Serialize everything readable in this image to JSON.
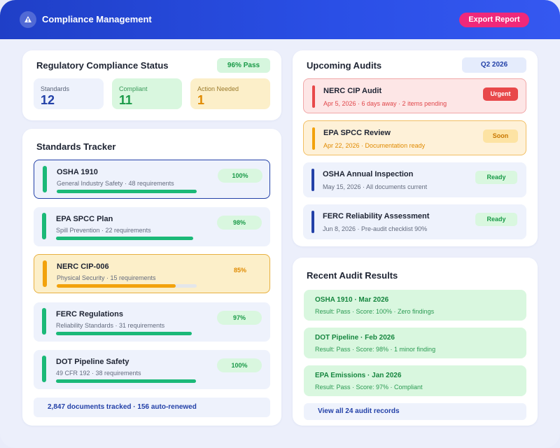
{
  "app": {
    "title": "Compliance Management",
    "export_label": "Export Report"
  },
  "status": {
    "title": "Regulatory Compliance Status",
    "pass_badge": "96% Pass",
    "stats": [
      {
        "label": "Standards",
        "value": "12",
        "bg": "#eef2fc",
        "label_color": "#5a6478",
        "value_color": "#2341a8"
      },
      {
        "label": "Compliant",
        "value": "11",
        "bg": "#d9f7df",
        "label_color": "#3a9a5a",
        "value_color": "#1a9a48"
      },
      {
        "label": "Action Needed",
        "value": "1",
        "bg": "#fcefc9",
        "label_color": "#9a7a2a",
        "value_color": "#e08a00"
      }
    ]
  },
  "tracker": {
    "title": "Standards Tracker",
    "items": [
      {
        "name": "OSHA 1910",
        "sub": "General Industry Safety · 48 requirements",
        "percent": "100%",
        "progress": 1.0,
        "state": "selected"
      },
      {
        "name": "EPA SPCC Plan",
        "sub": "Spill Prevention · 22 requirements",
        "percent": "98%",
        "progress": 0.98,
        "state": "ok"
      },
      {
        "name": "NERC CIP-006",
        "sub": "Physical Security · 15 requirements",
        "percent": "85%",
        "progress": 0.85,
        "state": "warning"
      },
      {
        "name": "FERC Regulations",
        "sub": "Reliability Standards · 31 requirements",
        "percent": "97%",
        "progress": 0.97,
        "state": "ok"
      },
      {
        "name": "DOT Pipeline Safety",
        "sub": "49 CFR 192 · 38 requirements",
        "percent": "100%",
        "progress": 1.0,
        "state": "ok"
      }
    ],
    "footer": "2,847 documents tracked · 156 auto-renewed"
  },
  "audits": {
    "title": "Upcoming Audits",
    "quarter": "Q2 2026",
    "items": [
      {
        "name": "NERC CIP Audit",
        "sub": "Apr 5, 2026 · 6 days away · 2 items pending",
        "tag": "Urgent",
        "state": "urgent"
      },
      {
        "name": "EPA SPCC Review",
        "sub": "Apr 22, 2026 · Documentation ready",
        "tag": "Soon",
        "state": "soon"
      },
      {
        "name": "OSHA Annual Inspection",
        "sub": "May 15, 2026 · All documents current",
        "tag": "Ready",
        "state": "ready"
      },
      {
        "name": "FERC Reliability Assessment",
        "sub": "Jun 8, 2026 · Pre-audit checklist 90%",
        "tag": "Ready",
        "state": "ready"
      }
    ]
  },
  "results": {
    "title": "Recent Audit Results",
    "items": [
      {
        "name": "OSHA 1910 · Mar 2026",
        "sub": "Result: Pass · Score: 100% · Zero findings"
      },
      {
        "name": "DOT Pipeline · Feb 2026",
        "sub": "Result: Pass · Score: 98% · 1 minor finding"
      },
      {
        "name": "EPA Emissions · Jan 2026",
        "sub": "Result: Pass · Score: 97% · Compliant"
      }
    ],
    "view_all": "View all 24 audit records"
  },
  "colors": {
    "header": "#2a4fe6",
    "accent_pink": "#f0287a",
    "success": "#1bb978",
    "warning": "#f2a20c",
    "danger": "#e8484a",
    "primary_dark": "#2341a8"
  },
  "icons": {
    "logo": "alert-triangle-icon"
  }
}
